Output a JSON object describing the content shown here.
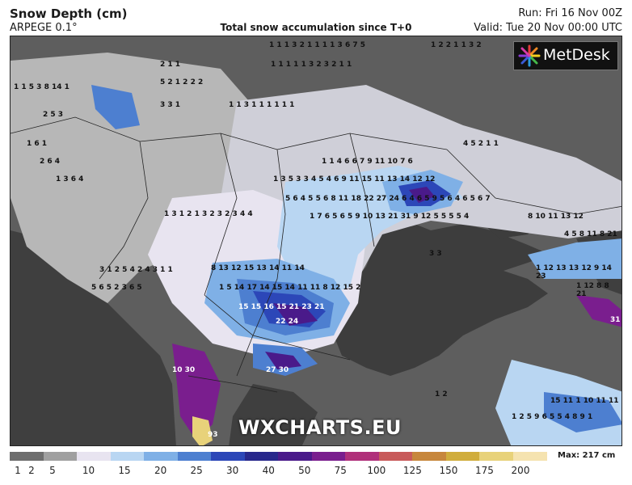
{
  "header": {
    "title": "Snow Depth (cm)",
    "model": "ARPEGE 0.1°",
    "subtitle": "Total snow accumulation since T+0",
    "run": "Run: Fri 16 Nov 00Z",
    "valid": "Valid: Tue 20 Nov 00:00 UTC"
  },
  "logo": {
    "text": "MetDesk"
  },
  "watermark": "WXCHARTS.EU",
  "colorbar": {
    "ticks": [
      "1",
      "2",
      "5",
      "10",
      "15",
      "20",
      "25",
      "30",
      "40",
      "50",
      "75",
      "100",
      "125",
      "150",
      "175",
      "200"
    ],
    "colors": [
      "#6e6e6e",
      "#a0a0a0",
      "#e8e4f0",
      "#b9d6f2",
      "#7fb0e6",
      "#4d7fd0",
      "#2c47b8",
      "#28288c",
      "#4a1a8a",
      "#7a1e8e",
      "#b0307a",
      "#c85a5a",
      "#c7873c",
      "#d0ad3c",
      "#e8d27a",
      "#f5e3b0"
    ],
    "max_label": "Max: 217 cm"
  },
  "map_labels": [
    {
      "t": "2 1 1",
      "c": "k"
    },
    {
      "t": "5 2 1 2 2 2",
      "c": "k"
    },
    {
      "t": "1 1 1 1 1 3 2 3 2 1 1",
      "c": "k"
    },
    {
      "t": "1 1 5 3 8 14 1",
      "c": "k"
    },
    {
      "t": "3 3 1",
      "c": "k"
    },
    {
      "t": "1 1 3 1 1 1 1 1 1",
      "c": "k"
    },
    {
      "t": "1 1 4 6 6 7 9 11 10 7 6",
      "c": "k"
    },
    {
      "t": "1 3 5 3 3 4 5 4 6 9 11 15 11 13 14 12 12",
      "c": "k"
    },
    {
      "t": "5 6 4 5 5 6 8 11 18 22 27 24 6 4 6 5 9 5 6 4 6 5 6 7",
      "c": "k"
    },
    {
      "t": "1 7 6 5 6 5 9 10 13 21 31 9 12 5 5 5 5 4",
      "c": "k"
    },
    {
      "t": "8 10 11 13 12",
      "c": "k"
    },
    {
      "t": "4 5 8 11 8 21",
      "c": "k"
    },
    {
      "t": "8 13 12 15 13 14 11 14",
      "c": "k"
    },
    {
      "t": "1 5 14 17 14 15 14 11 11 8 12 15 2",
      "c": "k"
    },
    {
      "t": "15 15 16 15 21 23 21",
      "c": "w"
    },
    {
      "t": "22 24",
      "c": "w"
    },
    {
      "t": "27 30",
      "c": "w"
    },
    {
      "t": "10 30",
      "c": "w"
    },
    {
      "t": "93",
      "c": "w"
    },
    {
      "t": "1 12 13 13 12 9 14 23",
      "c": "k"
    },
    {
      "t": "1 12 8 8 21",
      "c": "k"
    },
    {
      "t": "15 11 1 10 11 11",
      "c": "k"
    },
    {
      "t": "31",
      "c": "w"
    },
    {
      "t": "1 2 5 9 6 5 5 4 8 9 1",
      "c": "k"
    },
    {
      "t": "2 5 3",
      "c": "k"
    },
    {
      "t": "1 6 1",
      "c": "k"
    },
    {
      "t": "2 6 4",
      "c": "k"
    },
    {
      "t": "1 3 6 4",
      "c": "k"
    },
    {
      "t": "1 3 1 2 1 3 2 3 2 3 4 4",
      "c": "k"
    },
    {
      "t": "3 1 2 5 4 2 4 3 1 1",
      "c": "k"
    },
    {
      "t": "5 6 5 2 3 6 5",
      "c": "k"
    },
    {
      "t": "1 1 1 3 2 1 1 1 1 3 6 7 5",
      "c": "k"
    },
    {
      "t": "1 2 2 1 1 3 2",
      "c": "k"
    },
    {
      "t": "4 5 2 1 1",
      "c": "k"
    },
    {
      "t": "3 3",
      "c": "k"
    },
    {
      "t": "1 2",
      "c": "k"
    }
  ]
}
